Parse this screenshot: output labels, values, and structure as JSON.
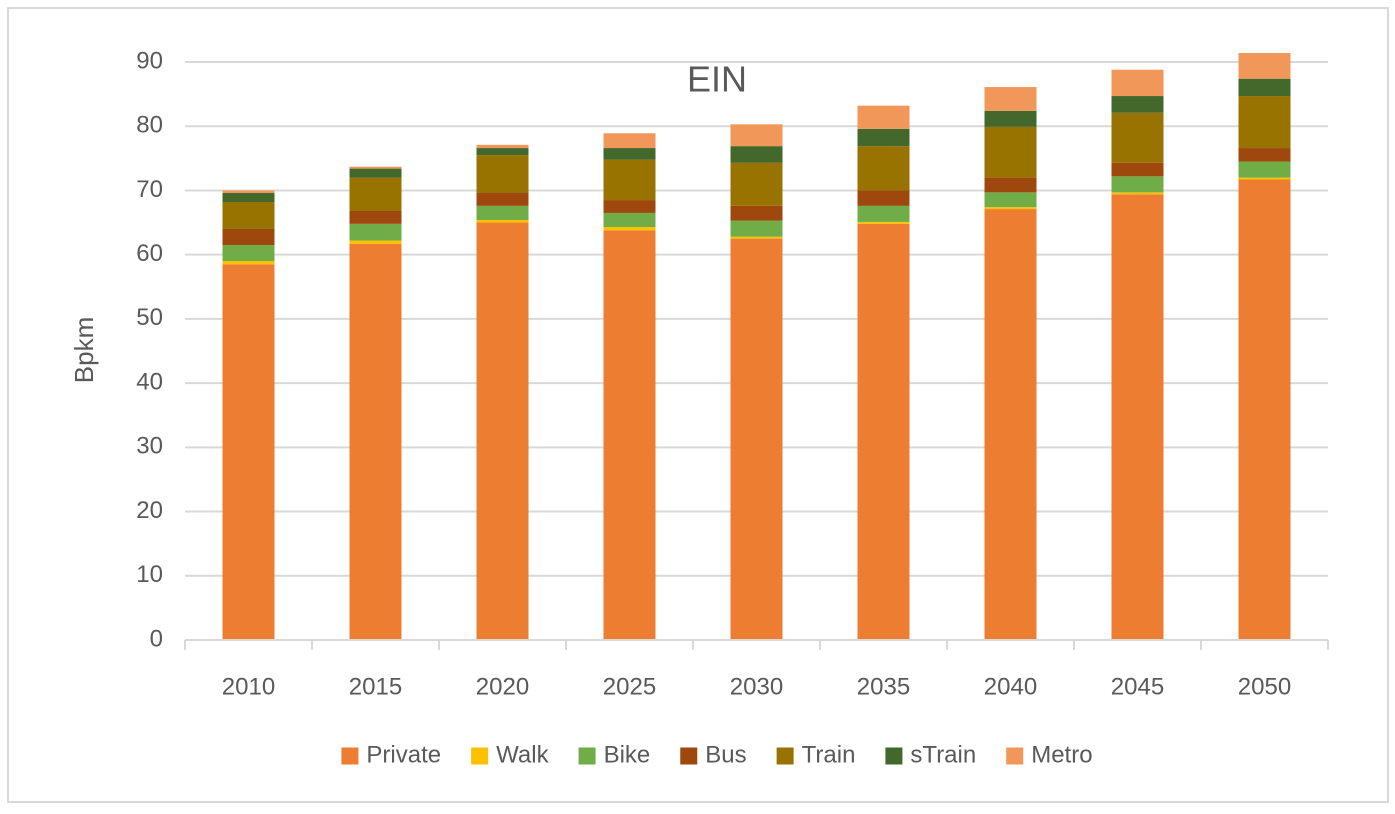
{
  "chart_data": {
    "type": "stacked_bar",
    "title": "EIN",
    "y_label": "Bpkm",
    "categories": [
      "2010",
      "2015",
      "2020",
      "2025",
      "2030",
      "2035",
      "2040",
      "2045",
      "2050"
    ],
    "series": [
      {
        "name": "Private",
        "color": "#ed7d31",
        "values": [
          58.5,
          61.7,
          65.0,
          63.8,
          62.5,
          64.8,
          67.1,
          69.4,
          71.7
        ]
      },
      {
        "name": "Walk",
        "color": "#ffc000",
        "values": [
          0.5,
          0.5,
          0.4,
          0.5,
          0.3,
          0.3,
          0.3,
          0.3,
          0.3
        ]
      },
      {
        "name": "Bike",
        "color": "#70ad47",
        "values": [
          2.5,
          2.6,
          2.2,
          2.2,
          2.5,
          2.5,
          2.3,
          2.5,
          2.5
        ]
      },
      {
        "name": "Bus",
        "color": "#9e480e",
        "values": [
          2.5,
          2.0,
          2.0,
          2.0,
          2.3,
          2.4,
          2.3,
          2.1,
          2.1
        ]
      },
      {
        "name": "Train",
        "color": "#997300",
        "values": [
          4.2,
          5.2,
          5.9,
          6.3,
          6.7,
          6.9,
          7.9,
          7.8,
          8.1
        ]
      },
      {
        "name": "sTrain",
        "color": "#43682b",
        "values": [
          1.4,
          1.4,
          1.1,
          1.8,
          2.6,
          2.7,
          2.5,
          2.6,
          2.7
        ]
      },
      {
        "name": "Metro",
        "color": "#f1975a",
        "values": [
          0.4,
          0.3,
          0.5,
          2.3,
          3.4,
          3.6,
          3.7,
          4.1,
          4.0
        ]
      }
    ],
    "ylim": [
      0,
      90
    ],
    "yticks": [
      0,
      10,
      20,
      30,
      40,
      50,
      60,
      70,
      80,
      90
    ],
    "grid": true,
    "legend": "bottom"
  }
}
